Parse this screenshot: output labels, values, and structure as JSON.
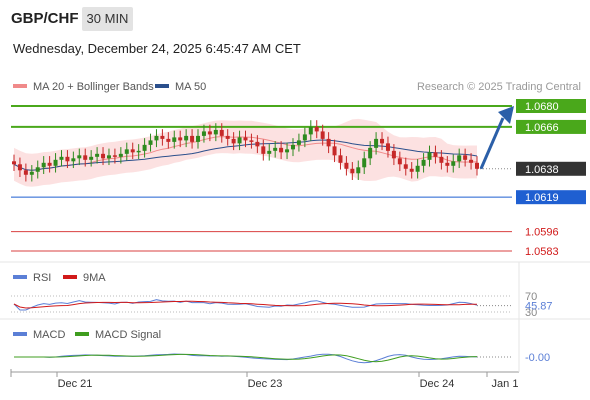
{
  "header": {
    "symbol": "GBP/CHF",
    "timeframe": "30 MIN",
    "datetime": "Wednesday, December 24, 2025 6:45:47 AM CET"
  },
  "price_panel": {
    "legend": [
      {
        "label": "MA 20 + Bollinger Bands",
        "color": "#f08a8a"
      },
      {
        "label": "MA 50",
        "color": "#2b4f8c"
      }
    ],
    "watermark": "Research © 2025 Trading Central",
    "levels": [
      {
        "label": "1.0680",
        "value": 1.068,
        "kind": "resistance",
        "color": "#4aa81b"
      },
      {
        "label": "1.0666",
        "value": 1.0666,
        "kind": "resistance",
        "color": "#4aa81b"
      },
      {
        "label": "1.0638",
        "value": 1.0638,
        "kind": "last",
        "color": "#333333"
      },
      {
        "label": "1.0619",
        "value": 1.0619,
        "kind": "pivot",
        "color": "#1f5fd1"
      },
      {
        "label": "1.0596",
        "value": 1.0596,
        "kind": "support",
        "color": "#d94040"
      },
      {
        "label": "1.0583",
        "value": 1.0583,
        "kind": "support",
        "color": "#d94040"
      }
    ]
  },
  "rsi_panel": {
    "legend": [
      {
        "label": "RSI",
        "color": "#5b7fd6"
      },
      {
        "label": "9MA",
        "color": "#d11a1a"
      }
    ],
    "ticks": [
      {
        "label": "70",
        "value": 70
      },
      {
        "label": "30",
        "value": 30
      }
    ],
    "current_label": "45.87",
    "current": 45.87
  },
  "macd_panel": {
    "legend": [
      {
        "label": "MACD",
        "color": "#5b7fd6"
      },
      {
        "label": "MACD Signal",
        "color": "#3f9d1f"
      }
    ],
    "current_label": "-0.00",
    "current": 0.0
  },
  "x_axis": {
    "labels": [
      "Dec 21",
      "Dec 23",
      "Dec 24",
      "Jan 1"
    ]
  },
  "chart_data": {
    "type": "candlestick",
    "symbol": "GBP/CHF",
    "interval": "30 MIN",
    "close": [
      1.0641,
      1.0637,
      1.0634,
      1.0636,
      1.0639,
      1.0642,
      1.064,
      1.0644,
      1.0646,
      1.0643,
      1.0645,
      1.0647,
      1.0644,
      1.0646,
      1.0648,
      1.0645,
      1.0647,
      1.0646,
      1.0648,
      1.0651,
      1.0649,
      1.065,
      1.0654,
      1.0657,
      1.066,
      1.0658,
      1.0656,
      1.0659,
      1.0657,
      1.066,
      1.0656,
      1.066,
      1.0663,
      1.0661,
      1.0664,
      1.066,
      1.0658,
      1.0655,
      1.0659,
      1.0657,
      1.0656,
      1.0653,
      1.0648,
      1.065,
      1.0652,
      1.0649,
      1.0651,
      1.0654,
      1.0657,
      1.0661,
      1.0666,
      1.0663,
      1.0658,
      1.0653,
      1.0647,
      1.0642,
      1.0638,
      1.0635,
      1.0639,
      1.0645,
      1.0652,
      1.0658,
      1.0655,
      1.065,
      1.0645,
      1.0641,
      1.0638,
      1.0636,
      1.064,
      1.0644,
      1.0649,
      1.0646,
      1.0642,
      1.064,
      1.0643,
      1.0647,
      1.0644,
      1.0642,
      1.0638
    ]
  }
}
